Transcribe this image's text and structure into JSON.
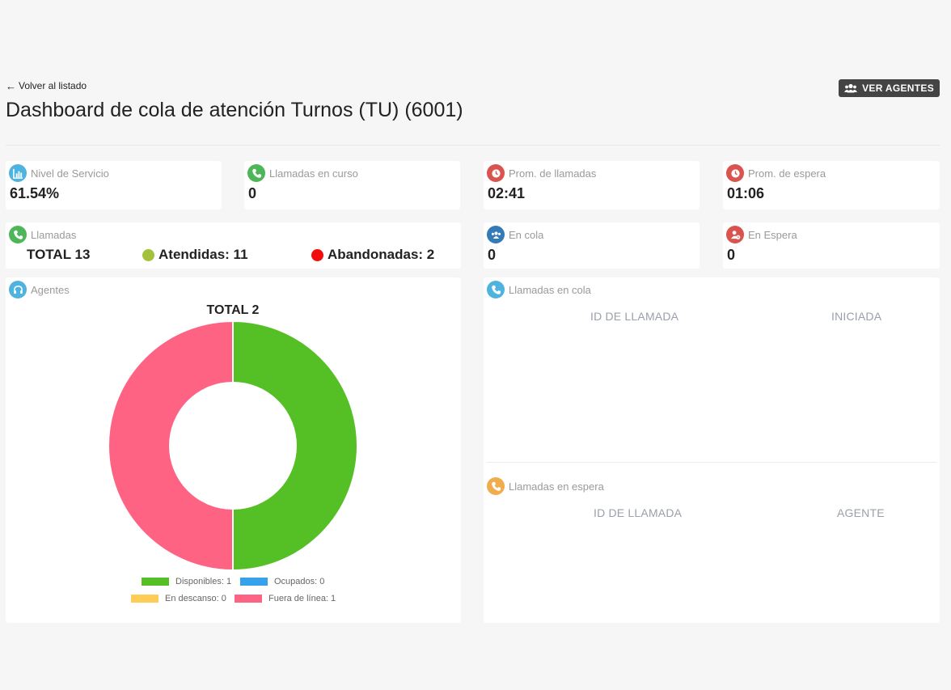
{
  "header": {
    "back_label": "Volver al listado",
    "ver_agentes_label": "VER AGENTES",
    "title": "Dashboard de cola de atención Turnos (TU) (6001)"
  },
  "stats": {
    "nivel_servicio": {
      "label": "Nivel de Servicio",
      "value": "61.54%",
      "icon": "chart-icon"
    },
    "llamadas_curso": {
      "label": "Llamadas en curso",
      "value": "0",
      "icon": "phone-icon"
    },
    "prom_llamadas": {
      "label": "Prom. de llamadas",
      "value": "02:41",
      "icon": "clock-icon"
    },
    "prom_espera": {
      "label": "Prom. de espera",
      "value": "01:06",
      "icon": "clock-icon"
    },
    "en_cola": {
      "label": "En cola",
      "value": "0",
      "icon": "users-icon"
    },
    "en_espera": {
      "label": "En Espera",
      "value": "0",
      "icon": "user-clock-icon"
    }
  },
  "llamadas": {
    "label": "Llamadas",
    "total": "TOTAL 13",
    "atendidas": "Atendidas: 11",
    "abandonadas": "Abandonadas: 2",
    "atendidas_color": "#a3c13b",
    "abandonadas_color": "#f20d0d"
  },
  "agentes": {
    "label": "Agentes",
    "legend": [
      {
        "label": "Disponibles: 1",
        "color": "#55bf26"
      },
      {
        "label": "Ocupados: 0",
        "color": "#36a2eb"
      },
      {
        "label": "En descanso: 0",
        "color": "#ffcd56"
      },
      {
        "label": "Fuera de línea: 1",
        "color": "#ff6384"
      }
    ]
  },
  "chart_data": {
    "type": "pie",
    "title": "TOTAL 2",
    "donut": true,
    "categories": [
      "Disponibles",
      "Ocupados",
      "En descanso",
      "Fuera de línea"
    ],
    "values": [
      1,
      0,
      0,
      1
    ],
    "colors": [
      "#55bf26",
      "#36a2eb",
      "#ffcd56",
      "#ff6384"
    ],
    "legend_position": "bottom"
  },
  "llamadas_en_cola": {
    "label": "Llamadas en cola",
    "columns": [
      "ID DE LLAMADA",
      "INICIADA"
    ]
  },
  "llamadas_en_espera": {
    "label": "Llamadas en espera",
    "columns": [
      "ID DE LLAMADA",
      "AGENTE"
    ]
  }
}
